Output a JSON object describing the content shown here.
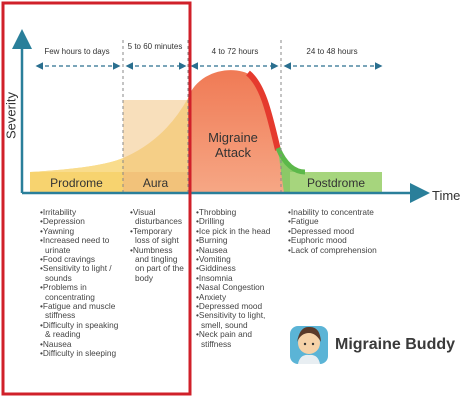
{
  "axes": {
    "y_label": "Severity",
    "x_label": "Time"
  },
  "phases": [
    {
      "name": "Prodrome",
      "duration": "Few hours to days",
      "symptoms": [
        "Irritability",
        "Depression",
        "Yawning",
        "Increased need to urinate",
        "Food cravings",
        "Sensitivity to light / sounds",
        "Problems in concentrating",
        "Fatigue and muscle stiffness",
        "Difficulty in speaking & reading",
        "Nausea",
        "Difficulty in sleeping"
      ]
    },
    {
      "name": "Aura",
      "duration": "5 to 60 minutes",
      "symptoms": [
        "Visual disturbances",
        "Temporary loss of sight",
        "Numbness and tingling on part of the body"
      ]
    },
    {
      "name": "Migraine Attack",
      "duration": "4 to 72 hours",
      "symptoms": [
        "Throbbing",
        "Drilling",
        "Ice pick in the head",
        "Burning",
        "Nausea",
        "Vomiting",
        "Giddiness",
        "Insomnia",
        "Nasal Congestion",
        "Anxiety",
        "Depressed mood",
        "Sensitivity to light, smell, sound",
        "Neck pain and stiffness"
      ]
    },
    {
      "name": "Postdrome",
      "duration": "24 to 48 hours",
      "symptoms": [
        "Inability to concentrate",
        "Fatigue",
        "Depressed mood",
        "Euphoric mood",
        "Lack of comprehension"
      ]
    }
  ],
  "brand": "Migraine Buddy"
}
